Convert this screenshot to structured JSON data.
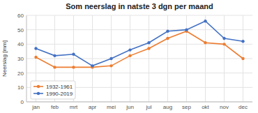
{
  "chart_data": {
    "type": "line",
    "title": "Som neerslag in natste 3 dgn per maand",
    "y_label": "Neerslag [mm]",
    "categories": [
      "jan",
      "feb",
      "mrt",
      "apr",
      "mei",
      "jun",
      "jul",
      "aug",
      "sep",
      "okt",
      "nov",
      "dec"
    ],
    "series": [
      {
        "name": "1932-1961",
        "color": "#ED7D31",
        "values": [
          31,
          24,
          24,
          24,
          25,
          32,
          37,
          44,
          49,
          41,
          40,
          30
        ]
      },
      {
        "name": "1990-2019",
        "color": "#4472C4",
        "values": [
          37,
          32,
          33,
          25,
          30,
          36,
          41,
          49,
          50,
          56,
          44,
          42
        ]
      }
    ],
    "ylim": [
      0,
      60
    ],
    "yticks": [
      0,
      10,
      20,
      30,
      40,
      50,
      60
    ],
    "grid": true,
    "legend": "lower left",
    "marker": "circle"
  }
}
